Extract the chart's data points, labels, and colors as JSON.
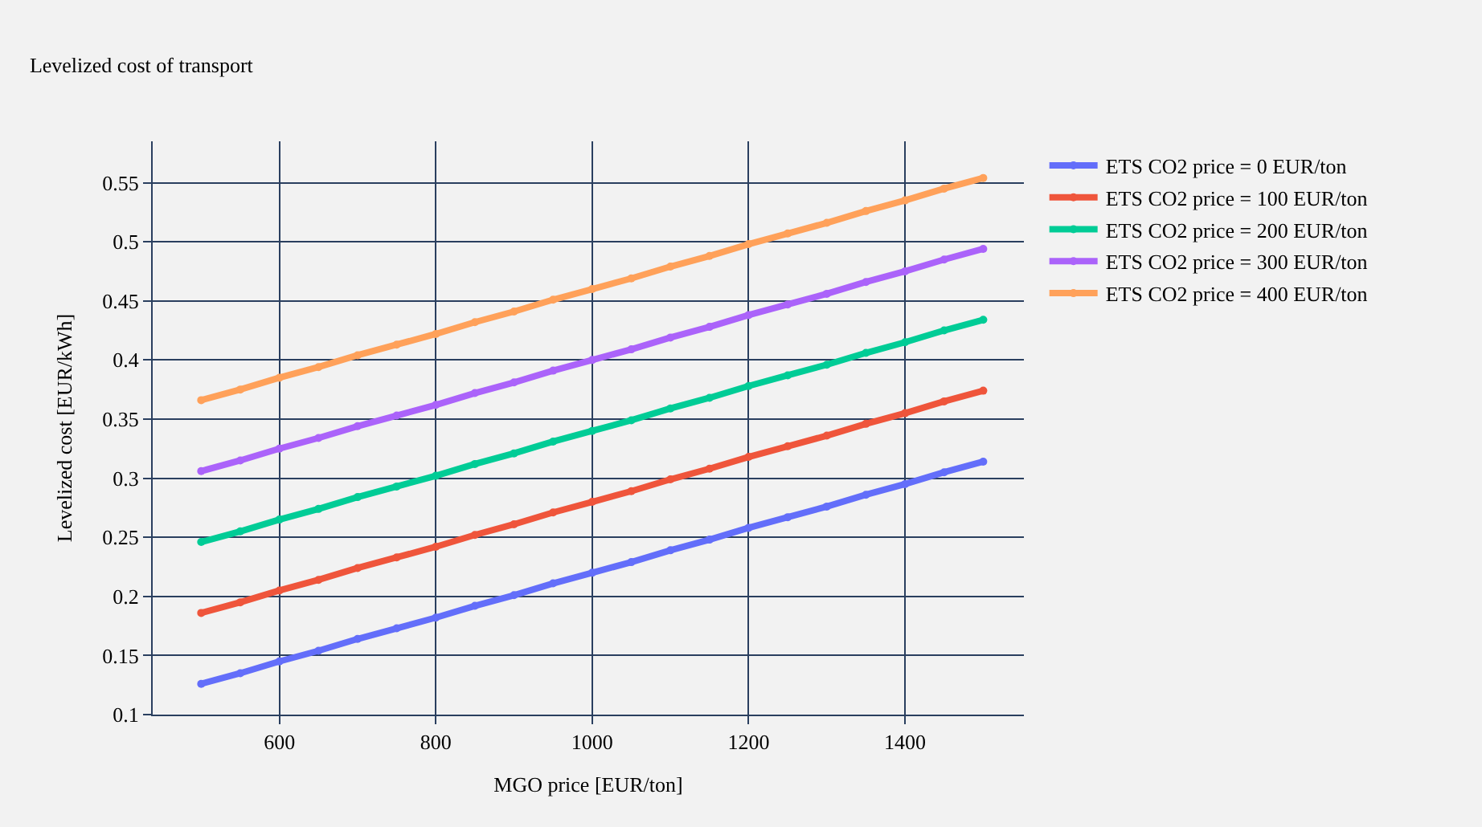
{
  "chart_data": {
    "type": "line",
    "title": "Levelized cost of transport",
    "xlabel": "MGO price [EUR/ton]",
    "ylabel": "Levelized cost [EUR/kWh]",
    "x": [
      500,
      550,
      600,
      650,
      700,
      750,
      800,
      850,
      900,
      950,
      1000,
      1050,
      1100,
      1150,
      1200,
      1250,
      1300,
      1350,
      1400,
      1450,
      1500
    ],
    "series": [
      {
        "name": "ETS CO2 price = 0 EUR/ton",
        "color": "#636efa",
        "values": [
          0.126,
          0.135,
          0.145,
          0.154,
          0.164,
          0.173,
          0.182,
          0.192,
          0.201,
          0.211,
          0.22,
          0.229,
          0.239,
          0.248,
          0.258,
          0.267,
          0.276,
          0.286,
          0.295,
          0.305,
          0.314
        ]
      },
      {
        "name": "ETS CO2 price = 100 EUR/ton",
        "color": "#ef553b",
        "values": [
          0.186,
          0.195,
          0.205,
          0.214,
          0.224,
          0.233,
          0.242,
          0.252,
          0.261,
          0.271,
          0.28,
          0.289,
          0.299,
          0.308,
          0.318,
          0.327,
          0.336,
          0.346,
          0.355,
          0.365,
          0.374
        ]
      },
      {
        "name": "ETS CO2 price = 200 EUR/ton",
        "color": "#00cc96",
        "values": [
          0.246,
          0.255,
          0.265,
          0.274,
          0.284,
          0.293,
          0.302,
          0.312,
          0.321,
          0.331,
          0.34,
          0.349,
          0.359,
          0.368,
          0.378,
          0.387,
          0.396,
          0.406,
          0.415,
          0.425,
          0.434
        ]
      },
      {
        "name": "ETS CO2 price = 300 EUR/ton",
        "color": "#ab63fa",
        "values": [
          0.306,
          0.315,
          0.325,
          0.334,
          0.344,
          0.353,
          0.362,
          0.372,
          0.381,
          0.391,
          0.4,
          0.409,
          0.419,
          0.428,
          0.438,
          0.447,
          0.456,
          0.466,
          0.475,
          0.485,
          0.494
        ]
      },
      {
        "name": "ETS CO2 price = 400 EUR/ton",
        "color": "#ffa15a",
        "values": [
          0.366,
          0.375,
          0.385,
          0.394,
          0.404,
          0.413,
          0.422,
          0.432,
          0.441,
          0.451,
          0.46,
          0.469,
          0.479,
          0.488,
          0.498,
          0.507,
          0.516,
          0.526,
          0.535,
          0.545,
          0.554
        ]
      }
    ],
    "xlim": [
      438,
      1552
    ],
    "xticks": [
      600,
      800,
      1000,
      1200,
      1400
    ],
    "ylim": [
      0.1,
      0.585
    ],
    "yticks": [
      0.1,
      0.15,
      0.2,
      0.25,
      0.3,
      0.35,
      0.4,
      0.45,
      0.5,
      0.55
    ],
    "grid": true,
    "legend": "top right",
    "marker": "circle",
    "line_style": "solid"
  }
}
